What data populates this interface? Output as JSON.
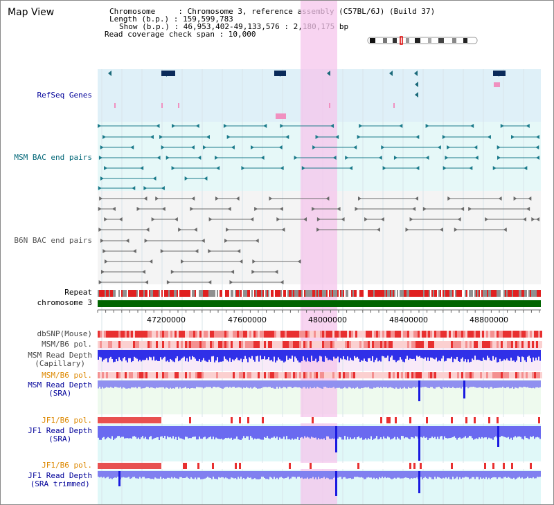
{
  "header": {
    "title": "Map View",
    "chromosome_line": "Chromosome     : Chromosome 3, reference assembly (C57BL/6J) (Build 37)",
    "length_line": "Length (b.p.) : 159,599,783",
    "show_line": "Show (b.p.) : 46,953,402-49,133,576 : 2,180,175 bp",
    "coverage_line": "Read coverage check span : 10,000"
  },
  "tracks": {
    "refseq": "RefSeq Genes",
    "msm_bac": "MSM BAC end pairs",
    "b6n_bac": "B6N BAC end pairs",
    "repeat": "Repeat",
    "chromosome": "chromosome 3",
    "dbsnp": "dbSNP(Mouse)",
    "msm_b6_pol_1": "MSM/B6 pol.",
    "msm_depth_cap_1": "MSM Read Depth",
    "msm_depth_cap_2": "(Capillary)",
    "msm_b6_pol_2": "MSM/B6 pol.",
    "msm_depth_sra_1": "MSM Read Depth",
    "msm_depth_sra_2": "(SRA)",
    "jf1_b6_pol_1": "JF1/B6 pol.",
    "jf1_depth_sra_1": "JF1 Read Depth",
    "jf1_depth_sra_2": "(SRA)",
    "jf1_b6_pol_2": "JF1/B6 pol.",
    "jf1_depth_trim_1": "JF1 Read Depth",
    "jf1_depth_trim_2": "(SRA trimmed)"
  },
  "axis": {
    "ticks": [
      "47200000",
      "47600000",
      "48000000",
      "48400000",
      "48800000"
    ]
  },
  "colors": {
    "refseq_bg": "#dff0f8",
    "msm_bg": "#e6f8f8",
    "b6n_bg": "#f4f4f4",
    "highlight": "#f6dcf0",
    "chromosome_bar": "#006400",
    "msm_depth": "#3c3cf0",
    "label_blue": "#000099",
    "label_orange": "#dd8800",
    "label_teal": "#006677"
  }
}
